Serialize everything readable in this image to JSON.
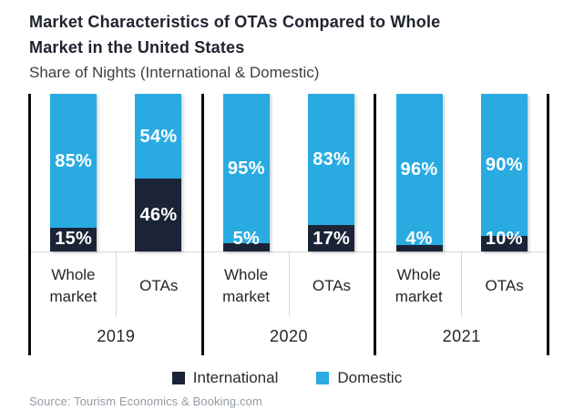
{
  "header": {
    "title": "Market Characteristics of OTAs Compared to Whole Market in the United States",
    "subtitle": "Share of Nights (International & Domestic)"
  },
  "chart_data": {
    "type": "bar",
    "stacked": true,
    "unit": "percent",
    "ylim": [
      0,
      100
    ],
    "grid": false,
    "legend_position": "bottom",
    "series_order": [
      "International",
      "Domestic"
    ],
    "groups": [
      {
        "year": "2019",
        "bars": [
          {
            "category": "Whole market",
            "international": 15,
            "domestic": 85,
            "international_label": "15%",
            "domestic_label": "85%"
          },
          {
            "category": "OTAs",
            "international": 46,
            "domestic": 54,
            "international_label": "46%",
            "domestic_label": "54%"
          }
        ]
      },
      {
        "year": "2020",
        "bars": [
          {
            "category": "Whole market",
            "international": 5,
            "domestic": 95,
            "international_label": "5%",
            "domestic_label": "95%"
          },
          {
            "category": "OTAs",
            "international": 17,
            "domestic": 83,
            "international_label": "17%",
            "domestic_label": "83%"
          }
        ]
      },
      {
        "year": "2021",
        "bars": [
          {
            "category": "Whole market",
            "international": 4,
            "domestic": 96,
            "international_label": "4%",
            "domestic_label": "96%"
          },
          {
            "category": "OTAs",
            "international": 10,
            "domestic": 90,
            "international_label": "10%",
            "domestic_label": "90%"
          }
        ]
      }
    ]
  },
  "legend": {
    "items": [
      {
        "label": "International",
        "color": "#1B2336"
      },
      {
        "label": "Domestic",
        "color": "#29ABE2"
      }
    ]
  },
  "colors": {
    "international": "#1B2336",
    "domestic": "#29ABE2",
    "axis_line": "#0a0a0a",
    "tick_line": "#d8d8d8"
  },
  "footer": {
    "source": "Source: Tourism Economics & Booking.com"
  }
}
